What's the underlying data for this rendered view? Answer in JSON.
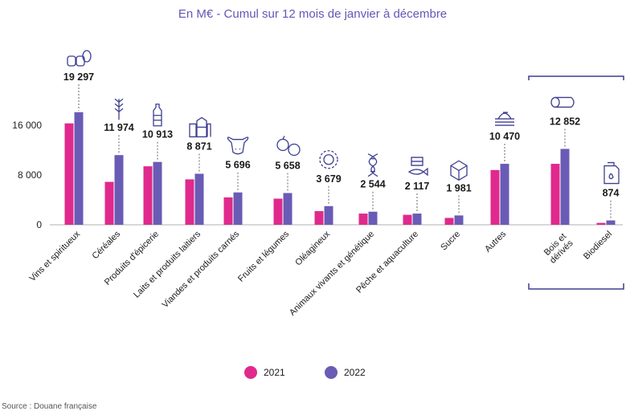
{
  "title": "En M€ - Cumul sur 12 mois de janvier à décembre",
  "source": "Source : Douane française",
  "colors": {
    "y2021": "#e0298c",
    "y2022": "#6a5bb5",
    "accent": "#3d3f8f"
  },
  "chart_data": {
    "type": "bar",
    "title": "En M€ - Cumul sur 12 mois de janvier à décembre",
    "ylim": [
      0,
      20000
    ],
    "yticks": [
      "0",
      "8 000",
      "16 000"
    ],
    "grid": false,
    "legend_position": "bottom",
    "categories": [
      "Vins et spiritueux",
      "Céréales",
      "Produits d'épicerie",
      "Laits et produits laitiers",
      "Viandes et produits carnés",
      "Fruits et légumes",
      "Oléagineux",
      "Animaux vivants et génétique",
      "Pêche et aquaculture",
      "Sucre",
      "Autres",
      "Bois et dérivés",
      "Biodiesel"
    ],
    "value_labels": [
      "19 297",
      "11 974",
      "10 913",
      "8 871",
      "5 696",
      "5 658",
      "3 679",
      "2 544",
      "2 117",
      "1 981",
      "10 470",
      "12 852",
      "874"
    ],
    "icons": [
      "barrels-icon",
      "wheat-icon",
      "bottle-icon",
      "milk-icon",
      "cow-icon",
      "fruit-icon",
      "sunflower-icon",
      "dna-icon",
      "fish-icon",
      "sugar-icon",
      "field-icon",
      "log-icon",
      "fuel-can-icon"
    ],
    "series": [
      {
        "name": "2021",
        "values": [
          16300,
          6900,
          9400,
          7300,
          4400,
          4200,
          2200,
          1800,
          1600,
          1100,
          8800,
          9800,
          300
        ]
      },
      {
        "name": "2022",
        "values": [
          18100,
          11200,
          10100,
          8200,
          5200,
          5100,
          3000,
          2100,
          1800,
          1500,
          9800,
          12200,
          700
        ]
      }
    ]
  }
}
